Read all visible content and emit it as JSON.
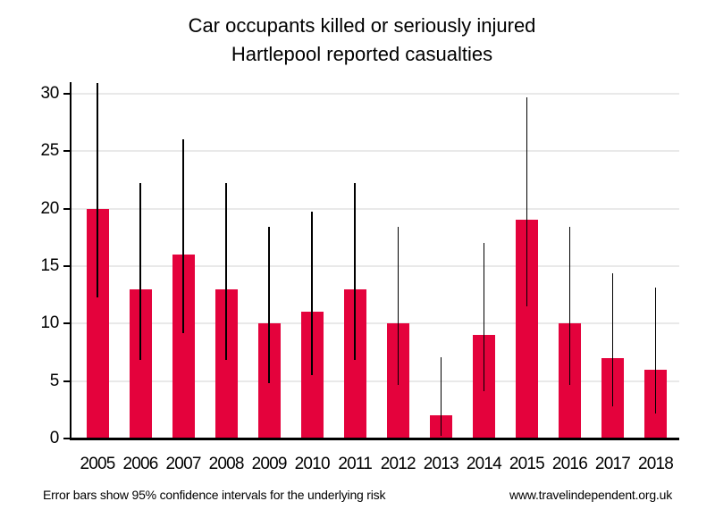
{
  "title": {
    "line1": "Car occupants killed or seriously injured",
    "line2": "Hartlepool reported casualties"
  },
  "footer": {
    "note": "Error bars show 95% confidence intervals for the underlying risk",
    "website": "www.travelindependent.org.uk"
  },
  "chart_data": {
    "type": "bar",
    "title": "Car occupants killed or seriously injured",
    "subtitle": "Hartlepool reported casualties",
    "categories": [
      "2005",
      "2006",
      "2007",
      "2008",
      "2009",
      "2010",
      "2011",
      "2012",
      "2013",
      "2014",
      "2015",
      "2016",
      "2017",
      "2018"
    ],
    "series": [
      {
        "name": "Reported casualties",
        "values": [
          20,
          13,
          16,
          13,
          10,
          11,
          13,
          10,
          2,
          9,
          19,
          10,
          7,
          6
        ]
      }
    ],
    "error_bars": {
      "meaning": "95% confidence intervals for the underlying risk",
      "low": [
        12.3,
        6.8,
        9.2,
        6.8,
        4.8,
        5.5,
        6.8,
        4.7,
        0.2,
        4.1,
        11.5,
        4.7,
        2.8,
        2.2
      ],
      "high": [
        30.9,
        22.2,
        26.0,
        22.2,
        18.4,
        19.7,
        22.2,
        18.4,
        7.1,
        17.0,
        29.7,
        18.4,
        14.4,
        13.1
      ]
    },
    "xlabel": "",
    "ylabel": "",
    "ylim": [
      0,
      31
    ],
    "yticks": [
      0,
      5,
      10,
      15,
      20,
      25,
      30
    ],
    "grid": "horizontal",
    "legend": "none",
    "bar_color": "#e4023c",
    "error_bar_color": "#000000",
    "gridline_color": "#e9e9e9",
    "axis_color": "#000000"
  }
}
